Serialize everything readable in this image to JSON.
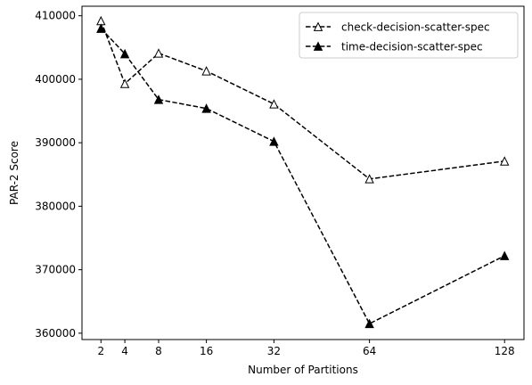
{
  "chart_data": {
    "type": "line",
    "title": "",
    "xlabel": "Number of Partitions",
    "ylabel": "PAR-2 Score",
    "x_ticks": [
      2,
      4,
      8,
      16,
      32,
      64,
      128
    ],
    "y_ticks": [
      360000,
      370000,
      380000,
      390000,
      400000,
      410000
    ],
    "x_scale": "sqrt",
    "xlim": [
      0.9,
      139
    ],
    "ylim": [
      359000,
      411500
    ],
    "grid": false,
    "legend_position": "top-right",
    "series": [
      {
        "name": "check-decision-scatter-spec",
        "marker": "open-triangle",
        "line_style": "dashed",
        "color": "#000000",
        "x": [
          2,
          4,
          8,
          16,
          32,
          64,
          128
        ],
        "y": [
          409200,
          399300,
          404100,
          401300,
          396100,
          384300,
          387100
        ]
      },
      {
        "name": "time-decision-scatter-spec",
        "marker": "filled-triangle",
        "line_style": "dashed",
        "color": "#000000",
        "x": [
          2,
          4,
          8,
          16,
          32,
          64,
          128
        ],
        "y": [
          408000,
          404000,
          396800,
          395400,
          390200,
          361500,
          372200
        ]
      }
    ]
  }
}
